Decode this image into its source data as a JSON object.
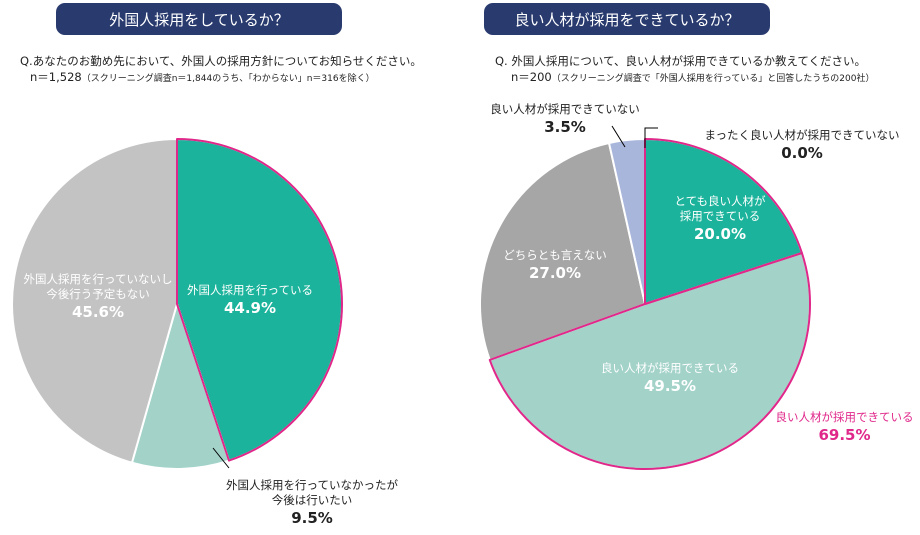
{
  "left": {
    "header": "外国人採用をしているか？",
    "question": "Q.あなたのお勤め先において、外国人の採用方針についてお知らせください。",
    "n_main": "n＝1,528",
    "n_note": "（スクリーニング調査n＝1,844のうち、「わからない」n＝316を除く）"
  },
  "right": {
    "header": "良い人材が採用をできているか？",
    "question": "Q.  外国人採用について、良い人材が採用できているか教えてください。",
    "n_main": "n＝200",
    "n_note": "（スクリーニング調査で「外国人採用を行っている」と回答したうちの200社）"
  },
  "colors": {
    "teal": "#1bb39b",
    "light_teal": "#a2d2c8",
    "light_gray": "#c3c3c3",
    "mid_gray": "#a6a6a6",
    "light_blue": "#a9b6dc",
    "pink": "#e0288a",
    "navy": "#283a6e"
  },
  "chart_data": [
    {
      "type": "pie",
      "title": "外国人採用をしているか？",
      "slices": [
        {
          "label_lines": [
            "外国人採用を行っている"
          ],
          "label_value": "44.9%",
          "value": 44.9,
          "color": "#1bb39b",
          "highlight": true
        },
        {
          "label_lines": [
            "外国人採用を行っていなかったが",
            "今後は行いたい"
          ],
          "label_value": "9.5%",
          "value": 9.5,
          "color": "#a2d2c8"
        },
        {
          "label_lines": [
            "外国人採用を行っていないし",
            "今後行う予定もない"
          ],
          "label_value": "45.6%",
          "value": 45.6,
          "color": "#c3c3c3"
        }
      ]
    },
    {
      "type": "pie",
      "title": "良い人材が採用をできているか？",
      "slices": [
        {
          "label_lines": [
            "まったく良い人材が採用できていない"
          ],
          "label_value": "0.0%",
          "value": 0.0,
          "color": "#ffffff"
        },
        {
          "label_lines": [
            "とても良い人材が",
            "採用できている"
          ],
          "label_value": "20.0%",
          "value": 20.0,
          "color": "#1bb39b",
          "highlight": true
        },
        {
          "label_lines": [
            "良い人材が採用できている"
          ],
          "label_value": "49.5%",
          "value": 49.5,
          "color": "#a2d2c8",
          "highlight": true
        },
        {
          "label_lines": [
            "どちらとも言えない"
          ],
          "label_value": "27.0%",
          "value": 27.0,
          "color": "#a6a6a6"
        },
        {
          "label_lines": [
            "良い人材が採用できていない"
          ],
          "label_value": "3.5%",
          "value": 3.5,
          "color": "#a9b6dc"
        }
      ],
      "highlight_total": {
        "label": "良い人材が採用できている",
        "value": "69.5%"
      }
    }
  ]
}
